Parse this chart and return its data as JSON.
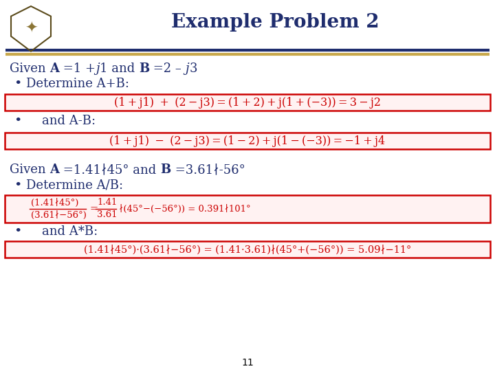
{
  "title": "Example Problem 2",
  "title_color": "#1f2d6e",
  "title_fontsize": 20,
  "background_color": "#ffffff",
  "line1_color": "#1f2d6e",
  "line2_color": "#c8a84b",
  "body_fontsize": 13,
  "red_color": "#cc0000",
  "dark_blue": "#1f2d6e",
  "page_number": "11",
  "given1_text": "Given ",
  "given1_A": "A",
  "given1_mid": " =1 +",
  "given1_j": "j",
  "given1_rest": "1 and ",
  "given1_B": "B",
  "given1_end": " =2 – ",
  "given1_j2": "j",
  "given1_3": "3",
  "bullet1": "Determine A+B:",
  "formula1_num": "(1 + j1)  +  (2 − j3) = (1 + 2) + j(1 + (−3)) = 3 − j2",
  "bullet2": "and A-B:",
  "formula2_num": "(1 + j1)  −  (2 − j3) = (1 − 2) + j(1 − (−3)) = −1 + j4",
  "given2_text": "Given ",
  "given2_A": "A",
  "given2_mid": " =1.41∤45° and ",
  "given2_B": "B",
  "given2_end": " =3.61∤-56°",
  "bullet3": "Determine A/B:",
  "frac_num": "(1.41∤45°)",
  "frac_den": "(3.61∤−56°)",
  "frac_eq": "=",
  "frac_num2": "1.41",
  "frac_den2": "3.61",
  "frac_rest": "∤(45°−(−56°)) = 0.391∤101°",
  "bullet4": "and A*B:",
  "formula4": "(1.41∤45°)·(3.61∤−56°) = (1.41·3.61)∤(45°+(−56°)) = 5.09∤−11°"
}
